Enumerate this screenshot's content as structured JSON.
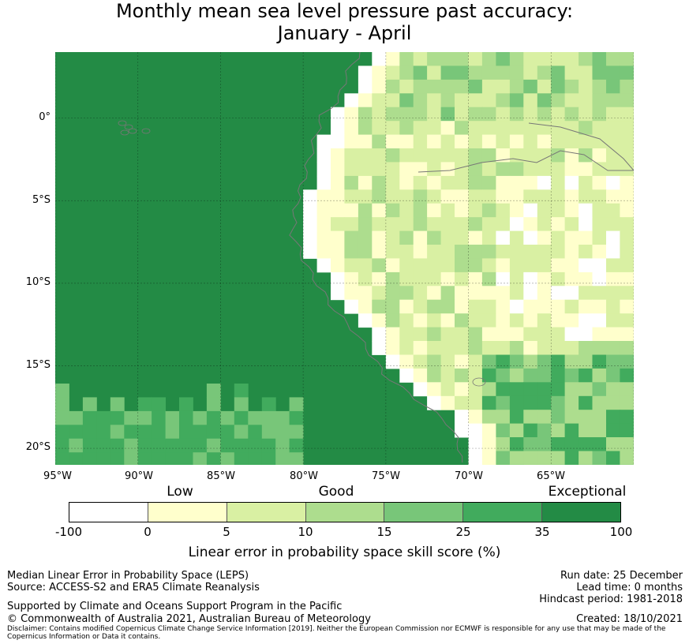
{
  "title": {
    "line1": "Monthly mean sea level pressure past accuracy:",
    "line2": "January - April"
  },
  "map": {
    "lat_labels": [
      "0°",
      "5°S",
      "10°S",
      "15°S",
      "20°S"
    ],
    "lon_labels": [
      "95°W",
      "90°W",
      "85°W",
      "80°W",
      "75°W",
      "70°W",
      "65°W"
    ],
    "extent": {
      "lon_min": -95,
      "lon_max": -60,
      "lat_min": -21,
      "lat_max": 4
    }
  },
  "legend": {
    "categories": [
      "Low",
      "Good",
      "Exceptional"
    ],
    "ticks": [
      "-100",
      "0",
      "5",
      "10",
      "15",
      "25",
      "35",
      "100"
    ],
    "colors": [
      "#ffffff",
      "#ffffcc",
      "#d9f0a3",
      "#addd8e",
      "#78c679",
      "#41ab5d",
      "#238b45"
    ],
    "title": "Linear error in probability space skill score (%)"
  },
  "footer": {
    "left1": "Median Linear Error in Probability Space (LEPS)",
    "left2": "Source: ACCESS-S2 and ERA5 Climate Reanalysis",
    "left3": "Supported by Climate and Oceans Support Program in the Pacific",
    "left4": "© Commonwealth of Australia 2021, Australian Bureau of Meteorology",
    "right1": "Run date: 25 December",
    "right2": "Lead time: 0 months",
    "right3": "Hindcast period: 1981-2018",
    "right4": "Created: 18/10/2021",
    "disclaimer": "Disclaimer: Contains modified Copernicus Climate Change Service Information [2019]. Neither the European Commission nor ECMWF is responsible for any use that may be made of the Copernicus Information or Data it contains."
  }
}
